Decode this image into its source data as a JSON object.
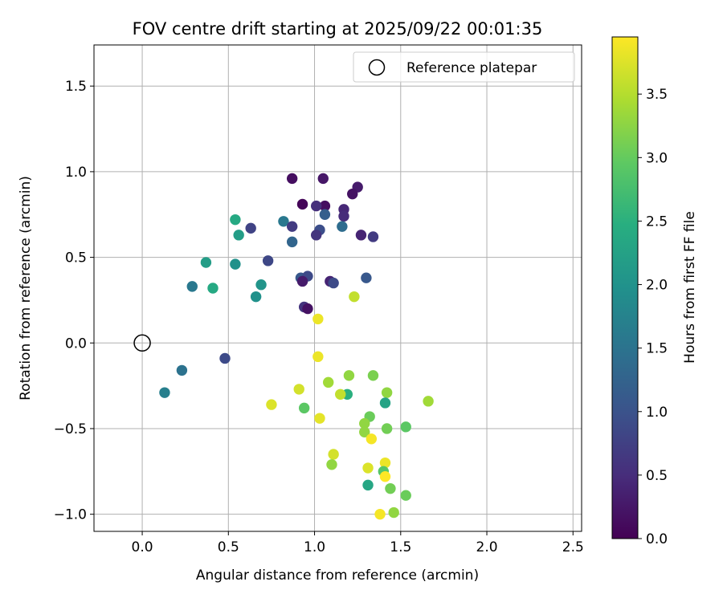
{
  "chart_data": {
    "type": "scatter",
    "title": "FOV centre drift starting at 2025/09/22 00:01:35",
    "xlabel": "Angular distance from reference (arcmin)",
    "ylabel": "Rotation from reference (arcmin)",
    "xlim": [
      -0.28,
      2.55
    ],
    "ylim": [
      -1.1,
      1.74
    ],
    "xticks": [
      0.0,
      0.5,
      1.0,
      1.5,
      2.0,
      2.5
    ],
    "xtick_labels": [
      "0.0",
      "0.5",
      "1.0",
      "1.5",
      "2.0",
      "2.5"
    ],
    "yticks": [
      -1.0,
      -0.5,
      0.0,
      0.5,
      1.0,
      1.5
    ],
    "ytick_labels": [
      "−1.0",
      "−0.5",
      "0.0",
      "0.5",
      "1.0",
      "1.5"
    ],
    "grid": true,
    "legend": {
      "position": "top-right",
      "entries": [
        "Reference platepar"
      ]
    },
    "reference_point": {
      "x": 0.0,
      "y": 0.0,
      "label": "Reference platepar",
      "marker": "open-circle"
    },
    "colorbar": {
      "label": "Hours from first FF file",
      "colormap": "viridis",
      "range": [
        0.0,
        3.95
      ],
      "ticks": [
        0.0,
        0.5,
        1.0,
        1.5,
        2.0,
        2.5,
        3.0,
        3.5
      ],
      "tick_labels": [
        "0.0",
        "0.5",
        "1.0",
        "1.5",
        "2.0",
        "2.5",
        "3.0",
        "3.5"
      ]
    },
    "points": [
      {
        "x": 0.87,
        "y": 0.96,
        "hours": 0.15
      },
      {
        "x": 1.05,
        "y": 0.96,
        "hours": 0.25
      },
      {
        "x": 1.25,
        "y": 0.91,
        "hours": 0.3
      },
      {
        "x": 1.22,
        "y": 0.87,
        "hours": 0.2
      },
      {
        "x": 0.93,
        "y": 0.81,
        "hours": 0.05
      },
      {
        "x": 1.06,
        "y": 0.8,
        "hours": 0.15
      },
      {
        "x": 1.01,
        "y": 0.8,
        "hours": 0.55
      },
      {
        "x": 1.17,
        "y": 0.78,
        "hours": 0.45
      },
      {
        "x": 1.17,
        "y": 0.74,
        "hours": 0.5
      },
      {
        "x": 1.06,
        "y": 0.75,
        "hours": 1.2
      },
      {
        "x": 0.54,
        "y": 0.72,
        "hours": 2.4
      },
      {
        "x": 0.82,
        "y": 0.71,
        "hours": 1.6
      },
      {
        "x": 0.87,
        "y": 0.68,
        "hours": 0.7
      },
      {
        "x": 1.16,
        "y": 0.68,
        "hours": 1.4
      },
      {
        "x": 0.63,
        "y": 0.67,
        "hours": 0.8
      },
      {
        "x": 1.03,
        "y": 0.66,
        "hours": 0.95
      },
      {
        "x": 1.01,
        "y": 0.63,
        "hours": 0.6
      },
      {
        "x": 0.56,
        "y": 0.63,
        "hours": 2.2
      },
      {
        "x": 1.27,
        "y": 0.63,
        "hours": 0.4
      },
      {
        "x": 1.34,
        "y": 0.62,
        "hours": 0.7
      },
      {
        "x": 0.87,
        "y": 0.59,
        "hours": 1.3
      },
      {
        "x": 0.73,
        "y": 0.48,
        "hours": 0.85
      },
      {
        "x": 0.37,
        "y": 0.47,
        "hours": 2.2
      },
      {
        "x": 0.54,
        "y": 0.46,
        "hours": 2.0
      },
      {
        "x": 0.92,
        "y": 0.38,
        "hours": 1.1
      },
      {
        "x": 0.96,
        "y": 0.39,
        "hours": 0.9
      },
      {
        "x": 1.3,
        "y": 0.38,
        "hours": 1.1
      },
      {
        "x": 0.93,
        "y": 0.36,
        "hours": 0.3
      },
      {
        "x": 1.09,
        "y": 0.36,
        "hours": 0.4
      },
      {
        "x": 1.11,
        "y": 0.35,
        "hours": 0.9
      },
      {
        "x": 0.69,
        "y": 0.34,
        "hours": 2.05
      },
      {
        "x": 0.29,
        "y": 0.33,
        "hours": 1.6
      },
      {
        "x": 0.41,
        "y": 0.32,
        "hours": 2.4
      },
      {
        "x": 0.66,
        "y": 0.27,
        "hours": 2.0
      },
      {
        "x": 1.23,
        "y": 0.27,
        "hours": 3.6
      },
      {
        "x": 0.94,
        "y": 0.21,
        "hours": 0.6
      },
      {
        "x": 0.96,
        "y": 0.2,
        "hours": 0.2
      },
      {
        "x": 1.02,
        "y": 0.14,
        "hours": 3.85
      },
      {
        "x": 1.02,
        "y": -0.08,
        "hours": 3.85
      },
      {
        "x": 0.48,
        "y": -0.09,
        "hours": 0.9
      },
      {
        "x": 0.23,
        "y": -0.16,
        "hours": 1.5
      },
      {
        "x": 1.2,
        "y": -0.19,
        "hours": 3.3
      },
      {
        "x": 1.34,
        "y": -0.19,
        "hours": 3.15
      },
      {
        "x": 1.08,
        "y": -0.23,
        "hours": 3.4
      },
      {
        "x": 0.91,
        "y": -0.27,
        "hours": 3.7
      },
      {
        "x": 0.13,
        "y": -0.29,
        "hours": 1.7
      },
      {
        "x": 1.19,
        "y": -0.3,
        "hours": 2.5
      },
      {
        "x": 1.15,
        "y": -0.3,
        "hours": 3.6
      },
      {
        "x": 1.42,
        "y": -0.29,
        "hours": 3.3
      },
      {
        "x": 1.41,
        "y": -0.35,
        "hours": 2.3
      },
      {
        "x": 1.66,
        "y": -0.34,
        "hours": 3.4
      },
      {
        "x": 0.75,
        "y": -0.36,
        "hours": 3.75
      },
      {
        "x": 0.94,
        "y": -0.38,
        "hours": 2.95
      },
      {
        "x": 1.32,
        "y": -0.43,
        "hours": 3.05
      },
      {
        "x": 1.03,
        "y": -0.44,
        "hours": 3.8
      },
      {
        "x": 1.29,
        "y": -0.47,
        "hours": 3.3
      },
      {
        "x": 1.42,
        "y": -0.5,
        "hours": 3.1
      },
      {
        "x": 1.53,
        "y": -0.49,
        "hours": 2.95
      },
      {
        "x": 1.29,
        "y": -0.52,
        "hours": 3.3
      },
      {
        "x": 1.33,
        "y": -0.56,
        "hours": 3.9
      },
      {
        "x": 1.11,
        "y": -0.65,
        "hours": 3.7
      },
      {
        "x": 1.1,
        "y": -0.71,
        "hours": 3.3
      },
      {
        "x": 1.41,
        "y": -0.7,
        "hours": 3.85
      },
      {
        "x": 1.31,
        "y": -0.73,
        "hours": 3.75
      },
      {
        "x": 1.4,
        "y": -0.75,
        "hours": 2.9
      },
      {
        "x": 1.41,
        "y": -0.78,
        "hours": 3.95
      },
      {
        "x": 1.31,
        "y": -0.83,
        "hours": 2.35
      },
      {
        "x": 1.44,
        "y": -0.85,
        "hours": 3.1
      },
      {
        "x": 1.53,
        "y": -0.89,
        "hours": 3.05
      },
      {
        "x": 1.38,
        "y": -1.0,
        "hours": 3.9
      },
      {
        "x": 1.46,
        "y": -0.99,
        "hours": 3.3
      }
    ]
  }
}
